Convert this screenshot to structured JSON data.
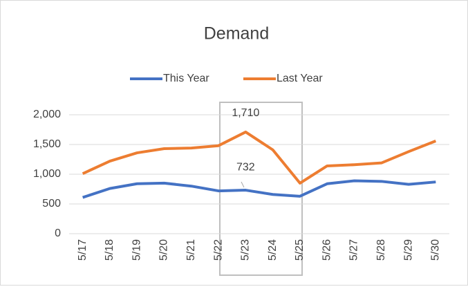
{
  "chart_data": {
    "type": "line",
    "title": "Demand",
    "categories": [
      "5/17",
      "5/18",
      "5/19",
      "5/20",
      "5/21",
      "5/22",
      "5/23",
      "5/24",
      "5/25",
      "5/26",
      "5/27",
      "5/28",
      "5/29",
      "5/30"
    ],
    "series": [
      {
        "name": "This Year",
        "color": "#4472c4",
        "values": [
          610,
          760,
          840,
          850,
          800,
          720,
          732,
          660,
          630,
          840,
          890,
          880,
          830,
          870
        ],
        "value_labels": [
          null,
          null,
          null,
          null,
          null,
          null,
          "732",
          null,
          null,
          null,
          null,
          null,
          null,
          null
        ]
      },
      {
        "name": "Last Year",
        "color": "#ed7d31",
        "values": [
          1010,
          1220,
          1360,
          1430,
          1440,
          1480,
          1710,
          1410,
          850,
          1140,
          1160,
          1190,
          1380,
          1560
        ],
        "value_labels": [
          null,
          null,
          null,
          null,
          null,
          null,
          "1,710",
          null,
          null,
          null,
          null,
          null,
          null,
          null
        ]
      }
    ],
    "ylim": [
      0,
      2000
    ],
    "yticks": [
      0,
      500,
      {
        "value": 1000,
        "label": "1,000"
      },
      {
        "value": 1500,
        "label": "1,500"
      },
      {
        "value": 2000,
        "label": "2,000"
      }
    ],
    "grid": true,
    "legend": "top"
  }
}
